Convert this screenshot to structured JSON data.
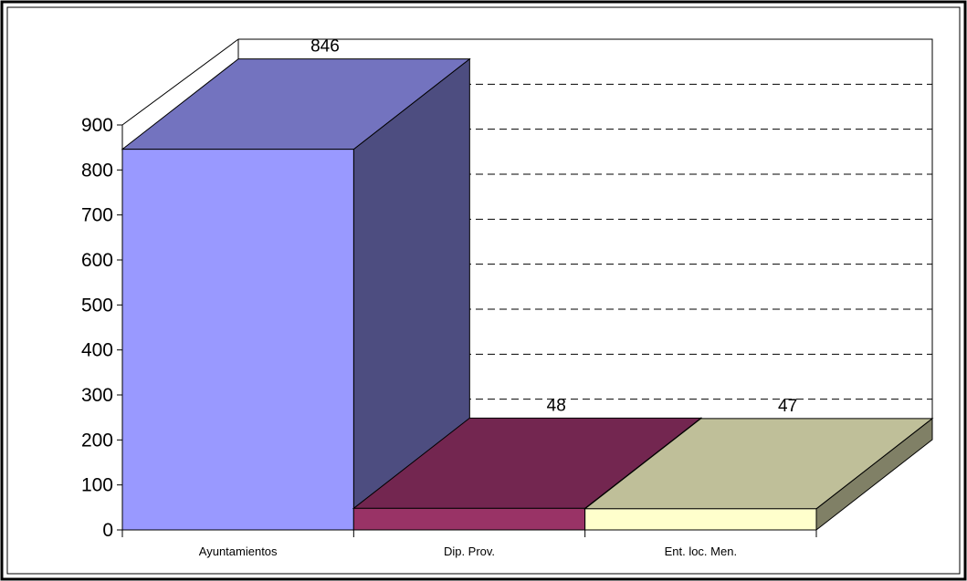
{
  "chart_data": {
    "type": "bar",
    "style": "3d",
    "categories": [
      "Ayuntamientos",
      "Dip. Prov.",
      "Ent. loc. Men."
    ],
    "values": [
      846,
      48,
      47
    ],
    "data_labels": [
      "846",
      "48",
      "47"
    ],
    "ylim": [
      0,
      900
    ],
    "yticks": [
      0,
      100,
      200,
      300,
      400,
      500,
      600,
      700,
      800,
      900
    ],
    "gridlines": "dashed",
    "legend": "none",
    "colors": {
      "bar_fronts": [
        "#9999ff",
        "#993366",
        "#ffffcc"
      ],
      "bar_tops": [
        "#7373bf",
        "#732650",
        "#bfbf99"
      ],
      "bar_sides": [
        "#4d4d80",
        "#4d1a33",
        "#808066"
      ],
      "frame": "#000000",
      "background": "#ffffff"
    }
  }
}
